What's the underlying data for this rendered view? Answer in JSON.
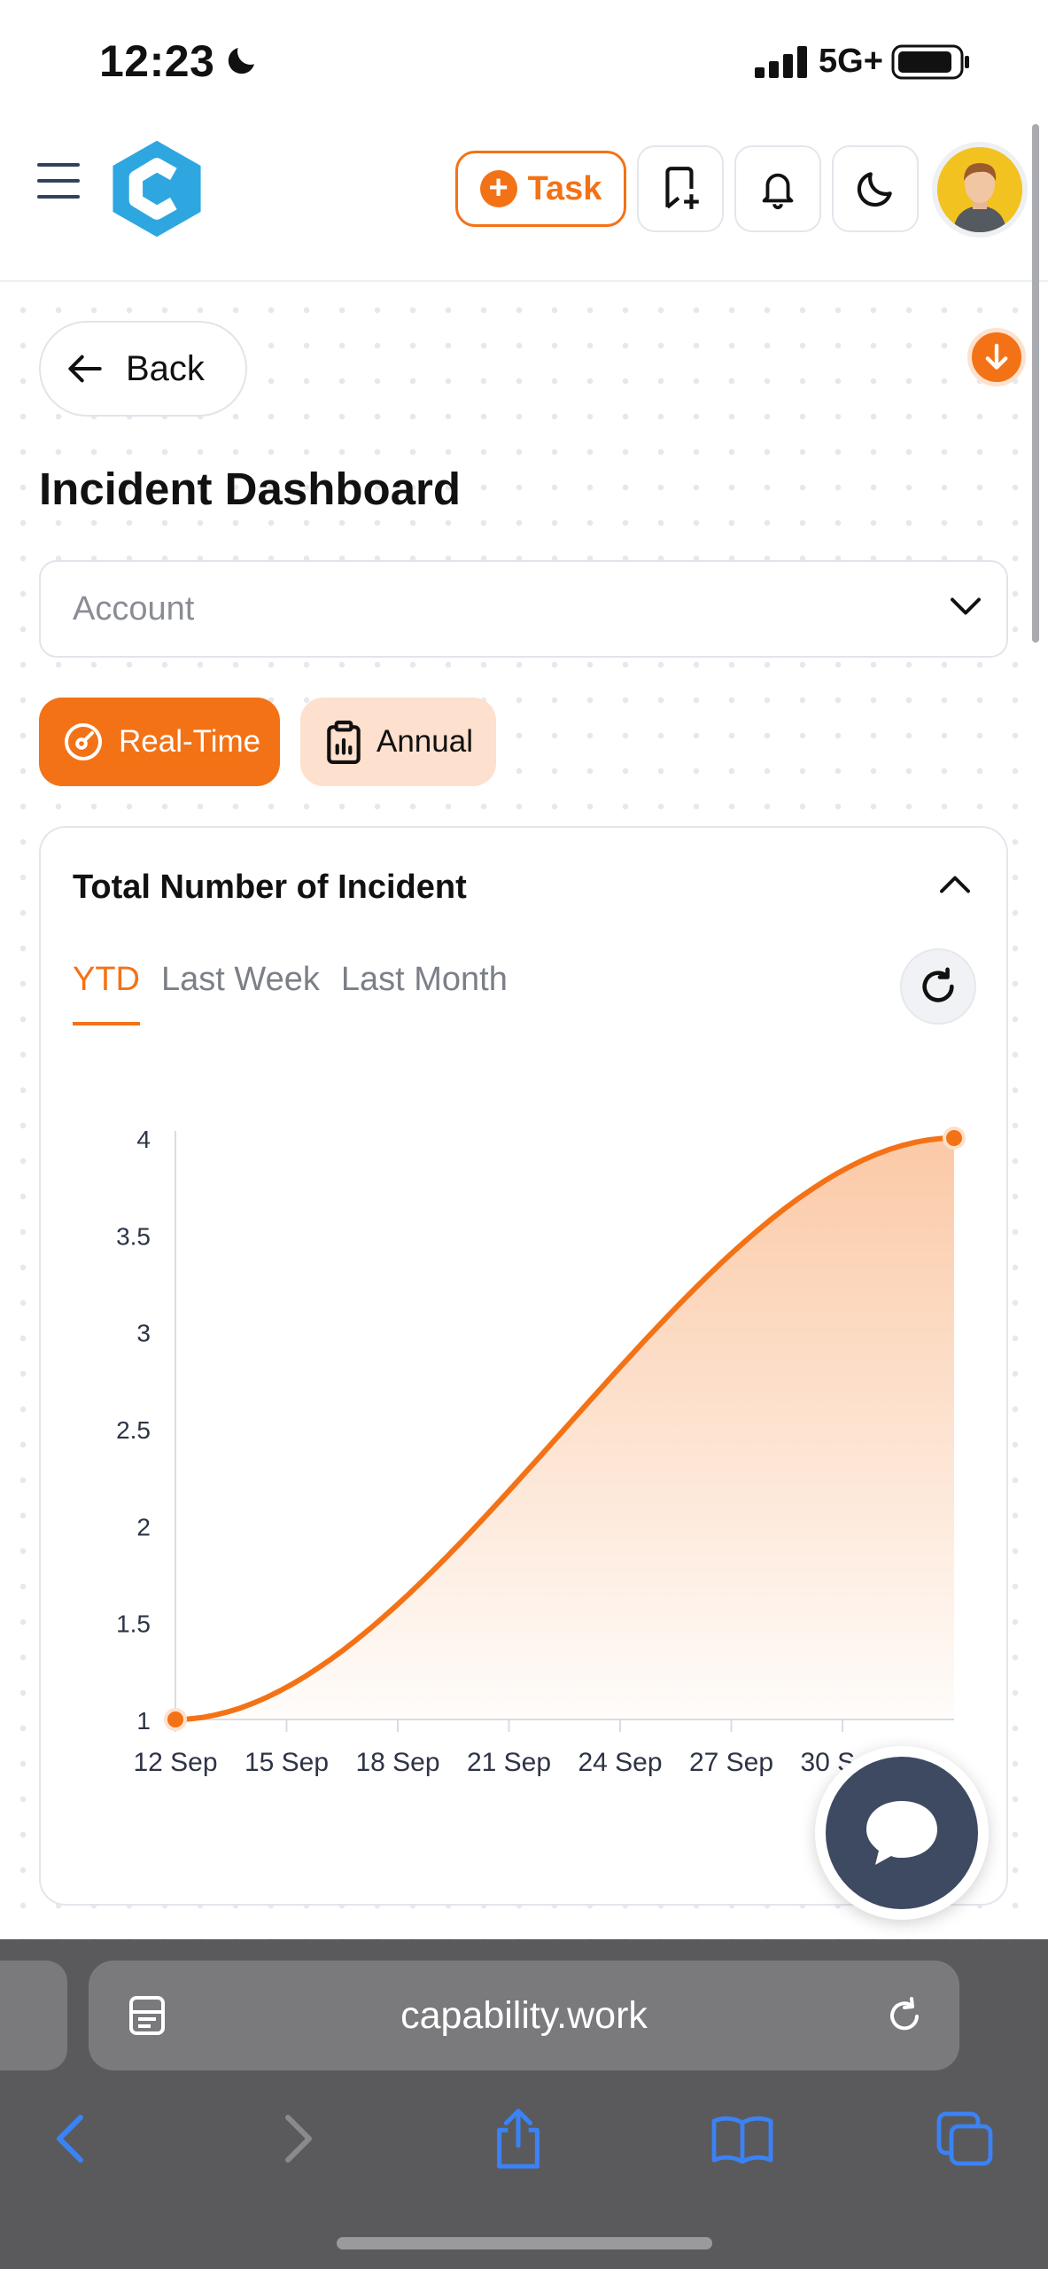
{
  "status_bar": {
    "time": "12:23",
    "network": "5G+"
  },
  "header": {
    "task_label": "Task",
    "icons": [
      "menu-icon",
      "logo",
      "bookmark-add-icon",
      "bell-icon",
      "moon-icon",
      "avatar"
    ]
  },
  "nav": {
    "back_label": "Back"
  },
  "page": {
    "title": "Incident Dashboard"
  },
  "filters": {
    "account_placeholder": "Account",
    "modes": [
      {
        "label": "Real-Time",
        "active": true
      },
      {
        "label": "Annual",
        "active": false
      }
    ]
  },
  "card": {
    "title": "Total Number of Incident",
    "tabs": [
      {
        "label": "YTD",
        "active": true
      },
      {
        "label": "Last Week",
        "active": false
      },
      {
        "label": "Last Month",
        "active": false
      }
    ]
  },
  "chart_data": {
    "type": "area",
    "title": "",
    "xlabel": "",
    "ylabel": "",
    "x_ticks": [
      "12 Sep",
      "15 Sep",
      "18 Sep",
      "21 Sep",
      "24 Sep",
      "27 Sep",
      "30 Sep"
    ],
    "y_ticks": [
      "1",
      "1.5",
      "2",
      "2.5",
      "3",
      "3.5",
      "4"
    ],
    "ylim": [
      1,
      4
    ],
    "series": [
      {
        "x": [
          "12 Sep",
          "3 Oct"
        ],
        "values": [
          1,
          4
        ]
      }
    ],
    "grid": false,
    "color": "#f47216"
  },
  "browser": {
    "url": "capability.work"
  },
  "colors": {
    "accent": "#f47216",
    "accent_light": "#fde0cd",
    "chat": "#3e4a62"
  }
}
